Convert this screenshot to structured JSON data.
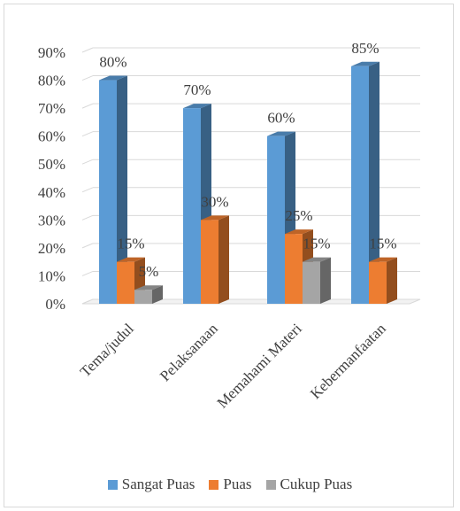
{
  "chart_data": {
    "type": "bar",
    "categories": [
      "Tema/judul",
      "Pelaksanaan",
      "Memahami Materi",
      "Kebermanfaatan"
    ],
    "series": [
      {
        "name": "Sangat Puas",
        "values": [
          80,
          70,
          60,
          85
        ],
        "color": "#5b9bd5",
        "labels": [
          "80%",
          "70%",
          "60%",
          "85%"
        ]
      },
      {
        "name": "Puas",
        "values": [
          15,
          30,
          25,
          15
        ],
        "color": "#ed7d31",
        "labels": [
          "15%",
          "30%",
          "25%",
          "15%"
        ]
      },
      {
        "name": "Cukup Puas",
        "values": [
          5,
          null,
          15,
          null
        ],
        "color": "#a5a5a5",
        "labels": [
          "5%",
          "",
          "15%",
          ""
        ]
      }
    ],
    "y_ticks": [
      "0%",
      "10%",
      "20%",
      "30%",
      "40%",
      "50%",
      "60%",
      "70%",
      "80%",
      "90%"
    ],
    "ylim": [
      0,
      90
    ],
    "grid": true,
    "legend_position": "bottom",
    "style": "3d-clustered-column"
  }
}
